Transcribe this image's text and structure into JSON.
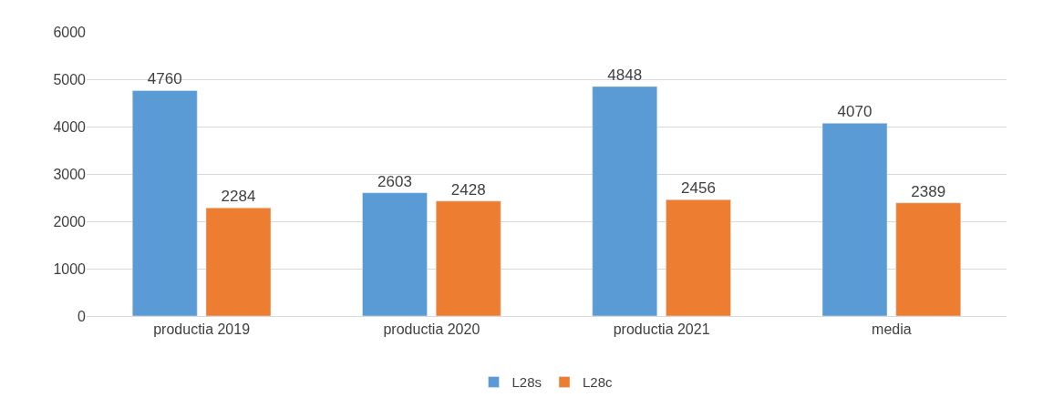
{
  "chart_data": {
    "type": "bar",
    "categories": [
      "productia 2019",
      "productia 2020",
      "productia 2021",
      "media"
    ],
    "series": [
      {
        "name": "L28s",
        "color": "#5b9bd5",
        "values": [
          4760,
          2603,
          4848,
          4070
        ]
      },
      {
        "name": "L28c",
        "color": "#ed7d31",
        "values": [
          2284,
          2428,
          2456,
          2389
        ]
      }
    ],
    "ylim": [
      0,
      6000
    ],
    "yticks": [
      0,
      1000,
      2000,
      3000,
      4000,
      5000,
      6000
    ],
    "grid": "y",
    "legend": "bottom",
    "data_labels": true
  }
}
